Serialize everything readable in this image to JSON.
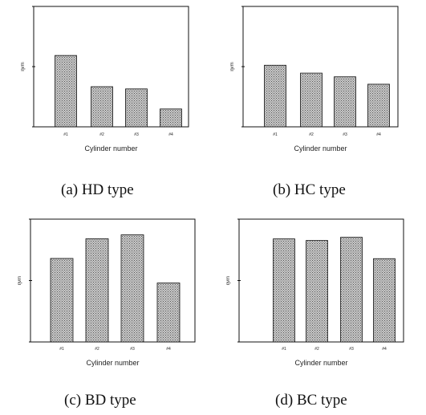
{
  "chart_data": [
    {
      "type": "bar",
      "caption": "(a)  HD  type",
      "xlabel": "Cylinder  number",
      "ylabel": "ηvm",
      "categories": [
        "#1",
        "#2",
        "#3",
        "#4"
      ],
      "values": [
        86,
        79,
        78.5,
        74
      ],
      "ylim": [
        70,
        97
      ],
      "yticks": [
        "",
        "",
        ""
      ],
      "grid": false,
      "legend": "none"
    },
    {
      "type": "bar",
      "caption": "(b)  HC  type",
      "xlabel": "Cylinder  number",
      "ylabel": "ηvm",
      "categories": [
        "#1",
        "#2",
        "#3",
        "#4"
      ],
      "values": [
        83.3,
        81.6,
        80.8,
        79.2
      ],
      "ylim": [
        70,
        96
      ],
      "yticks": [
        "",
        "",
        ""
      ],
      "grid": false,
      "legend": "none"
    },
    {
      "type": "bar",
      "caption": "(c)  BD  type",
      "xlabel": "Cylinder  number",
      "ylabel": "ηvm",
      "categories": [
        "#1",
        "#2",
        "#3",
        "#4"
      ],
      "values": [
        87,
        91,
        91.8,
        82
      ],
      "ylim": [
        70,
        95
      ],
      "yticks": [
        "",
        "",
        ""
      ],
      "grid": false,
      "legend": "none"
    },
    {
      "type": "bar",
      "caption": "(d)  BC  type",
      "xlabel": "Cylinder  number",
      "ylabel": "ηvm",
      "categories": [
        "#1",
        "#2",
        "#3",
        "#4"
      ],
      "values": [
        89.3,
        89,
        89.6,
        85.6
      ],
      "ylim": [
        70,
        93
      ],
      "yticks": [
        "",
        "",
        ""
      ],
      "grid": false,
      "legend": "none"
    }
  ],
  "colors": {
    "bar_fill": "#c9c9c9",
    "bar_dot": "#555555",
    "axis": "#111111"
  }
}
